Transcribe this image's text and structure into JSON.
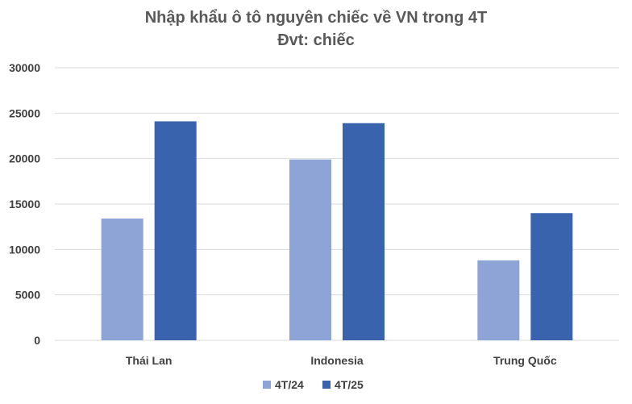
{
  "chart_data": {
    "type": "bar",
    "title": "Nhập khẩu ô tô nguyên chiếc về VN trong 4T",
    "subtitle": "Đvt: chiếc",
    "xlabel": "",
    "ylabel": "",
    "categories": [
      "Thái Lan",
      "Indonesia",
      "Trung Quốc"
    ],
    "series": [
      {
        "name": "4T/24",
        "values": [
          13400,
          19900,
          8800
        ],
        "color": "#8fa4d6"
      },
      {
        "name": "4T/25",
        "values": [
          24100,
          23900,
          14000
        ],
        "color": "#3a63ae"
      }
    ],
    "ylim": [
      0,
      30000
    ],
    "yticks": [
      0,
      5000,
      10000,
      15000,
      20000,
      25000,
      30000
    ],
    "grid": true,
    "legend_position": "bottom-center",
    "gridline_color": "#d9d9d9"
  }
}
